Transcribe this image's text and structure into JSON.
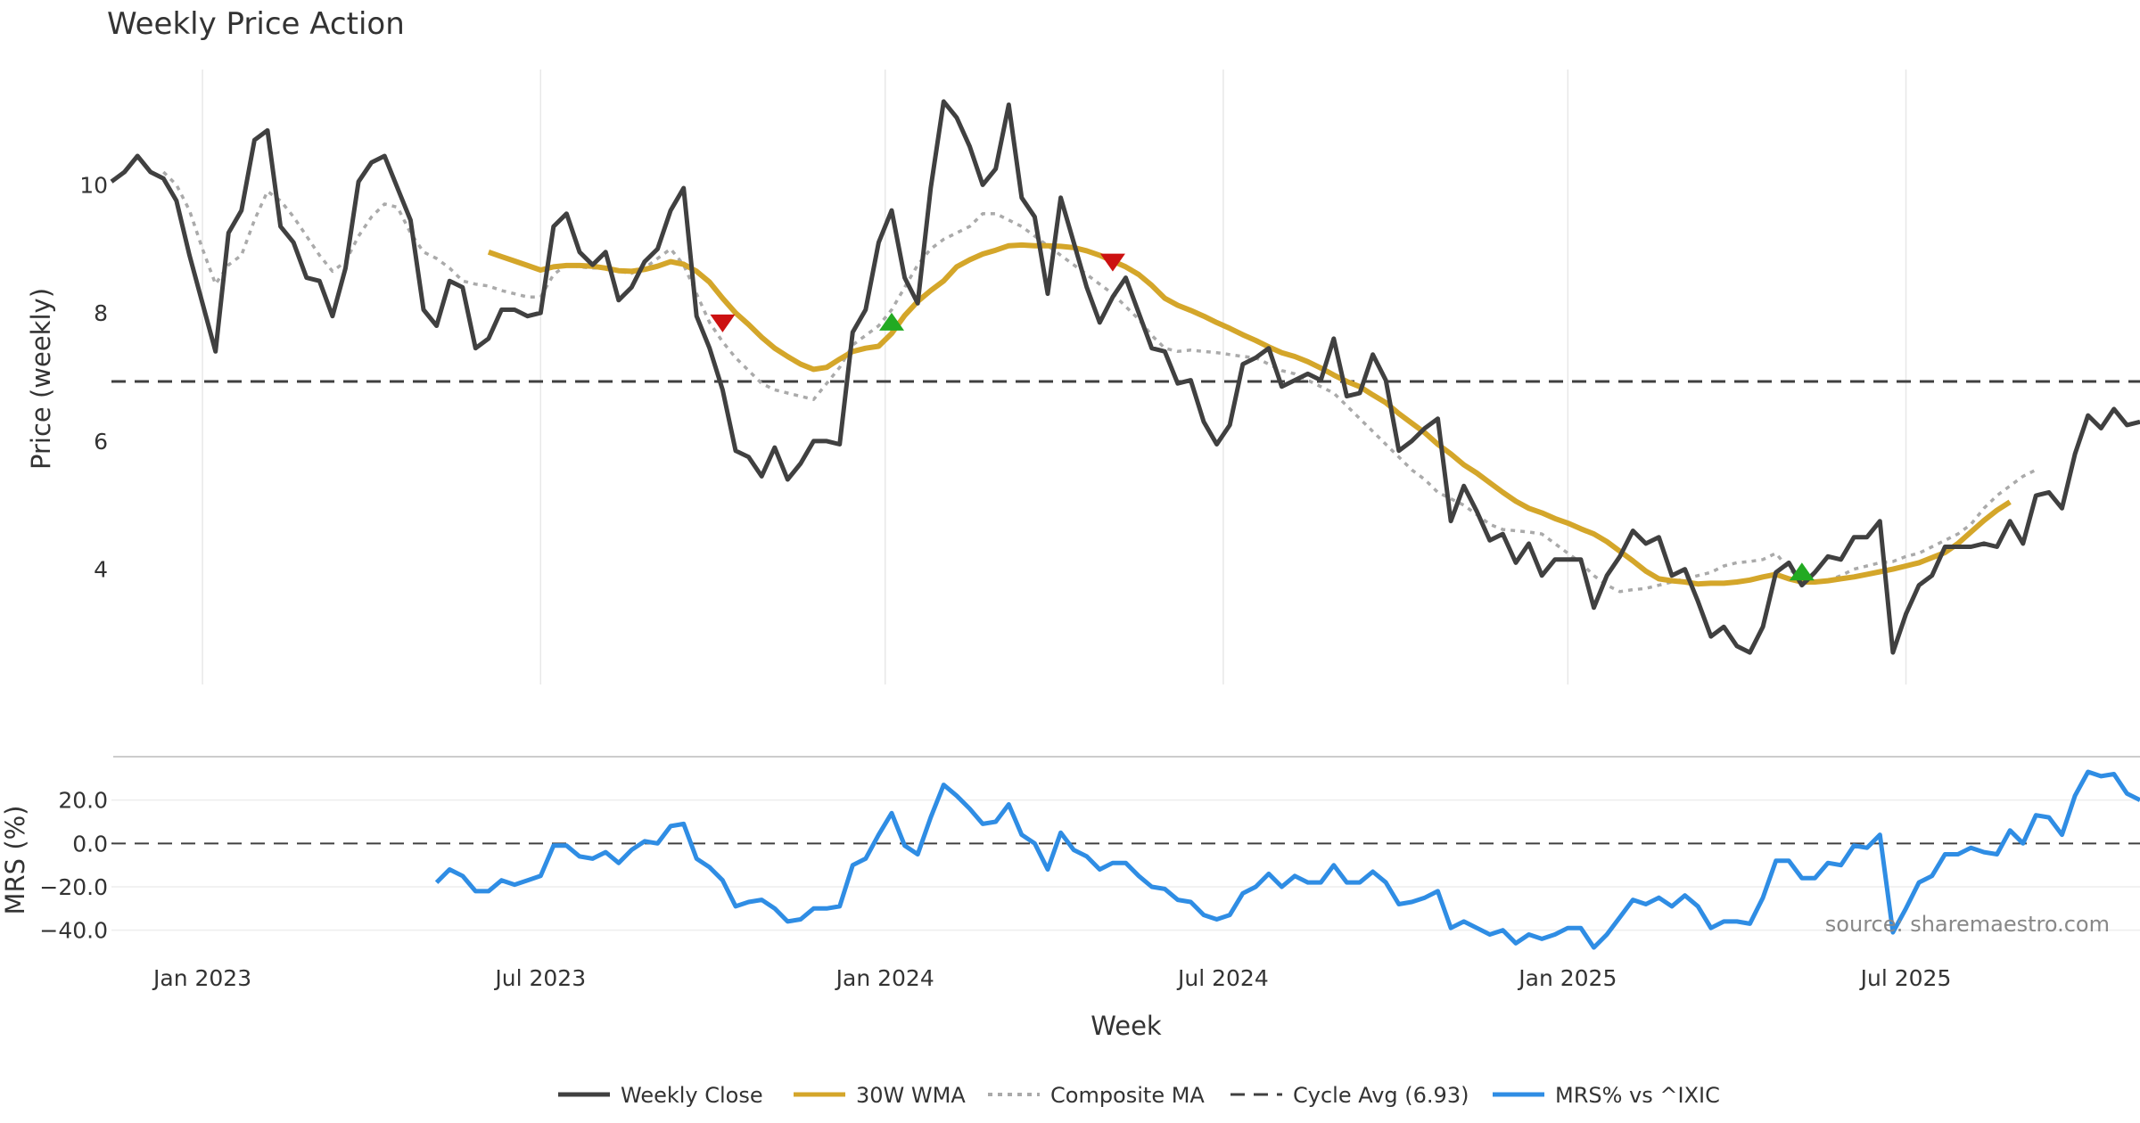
{
  "chart_data": {
    "type": "line",
    "title": "Weekly Price Action",
    "xlabel": "Week",
    "source_text": "source: sharemaestro.com",
    "x_ticks": [
      "Jan 2023",
      "Jul 2023",
      "Jan 2024",
      "Jul 2024",
      "Jan 2025",
      "Jul 2025"
    ],
    "x_tick_weeks": [
      7,
      33,
      59.5,
      85.5,
      112,
      138
    ],
    "x_range": [
      0,
      156
    ],
    "price_panel": {
      "ylabel": "Price (weekly)",
      "ylim": [
        2.2,
        11.8
      ],
      "y_ticks": [
        4,
        6,
        8,
        10
      ],
      "y_tick_labels": [
        "4",
        "6",
        "8",
        "10"
      ],
      "cycle_avg": 6.93,
      "series": [
        {
          "name": "Weekly Close",
          "color": "#404040",
          "start_week": 0,
          "values": [
            10.05,
            10.2,
            10.45,
            10.2,
            10.1,
            9.75,
            8.9,
            8.15,
            7.4,
            9.25,
            9.6,
            10.7,
            10.85,
            9.35,
            9.1,
            8.55,
            8.5,
            7.95,
            8.7,
            10.05,
            10.35,
            10.45,
            9.95,
            9.45,
            8.05,
            7.8,
            8.5,
            8.4,
            7.45,
            7.6,
            8.05,
            8.05,
            7.95,
            8.0,
            9.35,
            9.55,
            8.95,
            8.75,
            8.95,
            8.2,
            8.4,
            8.8,
            9.0,
            9.6,
            9.95,
            7.95,
            7.45,
            6.8,
            5.85,
            5.75,
            5.45,
            5.9,
            5.4,
            5.65,
            6.0,
            6.0,
            5.95,
            7.7,
            8.05,
            9.1,
            9.6,
            8.55,
            8.15,
            9.95,
            11.3,
            11.05,
            10.6,
            10.0,
            10.25,
            11.25,
            9.8,
            9.5,
            8.3,
            9.8,
            9.1,
            8.4,
            7.85,
            8.25,
            8.55,
            8.0,
            7.45,
            7.4,
            6.9,
            6.95,
            6.3,
            5.95,
            6.25,
            7.2,
            7.3,
            7.45,
            6.85,
            6.95,
            7.05,
            6.95,
            7.6,
            6.7,
            6.75,
            7.35,
            6.95,
            5.85,
            6.0,
            6.2,
            6.35,
            4.75,
            5.3,
            4.9,
            4.45,
            4.55,
            4.1,
            4.4,
            3.9,
            4.15,
            4.15,
            4.15,
            3.4,
            3.9,
            4.2,
            4.6,
            4.4,
            4.5,
            3.9,
            4.0,
            3.5,
            2.95,
            3.1,
            2.8,
            2.7,
            3.1,
            3.95,
            4.1,
            3.75,
            3.95,
            4.2,
            4.15,
            4.5,
            4.5,
            4.75,
            2.7,
            3.3,
            3.75,
            3.9,
            4.35,
            4.35,
            4.35,
            4.4,
            4.35,
            4.75,
            4.4,
            5.15,
            5.2,
            4.95,
            5.8,
            6.4,
            6.2,
            6.5,
            6.25,
            6.3
          ]
        },
        {
          "name": "30W WMA",
          "color": "#d4a62a",
          "start_week": 29,
          "values": [
            8.95,
            8.88,
            8.81,
            8.74,
            8.67,
            8.72,
            8.74,
            8.74,
            8.73,
            8.7,
            8.66,
            8.65,
            8.68,
            8.73,
            8.8,
            8.76,
            8.65,
            8.48,
            8.23,
            8.0,
            7.82,
            7.62,
            7.45,
            7.32,
            7.2,
            7.12,
            7.15,
            7.28,
            7.4,
            7.45,
            7.48,
            7.68,
            7.96,
            8.18,
            8.35,
            8.5,
            8.72,
            8.83,
            8.92,
            8.98,
            9.05,
            9.06,
            9.05,
            9.05,
            9.04,
            9.02,
            8.97,
            8.9,
            8.81,
            8.72,
            8.6,
            8.43,
            8.23,
            8.12,
            8.04,
            7.95,
            7.85,
            7.76,
            7.66,
            7.57,
            7.47,
            7.38,
            7.32,
            7.24,
            7.14,
            7.03,
            6.93,
            6.85,
            6.72,
            6.6,
            6.43,
            6.28,
            6.13,
            5.95,
            5.8,
            5.63,
            5.5,
            5.35,
            5.2,
            5.06,
            4.95,
            4.88,
            4.79,
            4.72,
            4.63,
            4.55,
            4.43,
            4.28,
            4.13,
            3.97,
            3.85,
            3.82,
            3.8,
            3.77,
            3.78,
            3.78,
            3.8,
            3.83,
            3.88,
            3.92,
            3.85,
            3.8,
            3.8,
            3.82,
            3.85,
            3.88,
            3.92,
            3.96,
            4.0,
            4.05,
            4.1,
            4.18,
            4.26,
            4.4,
            4.58,
            4.76,
            4.92,
            5.05
          ]
        },
        {
          "name": "Composite MA",
          "color": "#aaaaaa",
          "start_week": 4,
          "values": [
            10.2,
            10.0,
            9.6,
            9.0,
            8.45,
            8.75,
            8.9,
            9.45,
            9.9,
            9.75,
            9.5,
            9.2,
            8.9,
            8.65,
            8.8,
            9.2,
            9.5,
            9.7,
            9.65,
            9.25,
            8.95,
            8.85,
            8.7,
            8.5,
            8.45,
            8.42,
            8.35,
            8.3,
            8.25,
            8.25,
            8.6,
            8.75,
            8.72,
            8.7,
            8.7,
            8.65,
            8.62,
            8.7,
            8.85,
            9.0,
            8.75,
            8.3,
            7.85,
            7.55,
            7.3,
            7.1,
            6.9,
            6.8,
            6.75,
            6.7,
            6.65,
            6.9,
            7.15,
            7.5,
            7.65,
            7.8,
            8.05,
            8.4,
            8.75,
            9.0,
            9.15,
            9.25,
            9.35,
            9.55,
            9.55,
            9.45,
            9.35,
            9.2,
            9.05,
            8.9,
            8.75,
            8.6,
            8.45,
            8.3,
            8.1,
            7.9,
            7.65,
            7.45,
            7.4,
            7.42,
            7.4,
            7.38,
            7.35,
            7.32,
            7.3,
            7.2,
            7.1,
            7.05,
            6.95,
            6.85,
            6.75,
            6.55,
            6.35,
            6.15,
            5.95,
            5.75,
            5.55,
            5.4,
            5.2,
            5.1,
            5.0,
            4.85,
            4.7,
            4.62,
            4.6,
            4.58,
            4.55,
            4.4,
            4.25,
            4.1,
            3.9,
            3.75,
            3.65,
            3.68,
            3.7,
            3.75,
            3.8,
            3.85,
            3.9,
            3.95,
            4.05,
            4.1,
            4.12,
            4.15,
            4.25,
            4.0,
            3.85,
            3.8,
            3.82,
            3.9,
            4.0,
            4.05,
            4.1,
            4.12,
            4.2,
            4.25,
            4.35,
            4.45,
            4.55,
            4.7,
            4.95,
            5.15,
            5.3,
            5.45,
            5.55
          ]
        }
      ],
      "signals": [
        {
          "type": "sell",
          "week": 47,
          "value": 7.85,
          "color": "#cc1111"
        },
        {
          "type": "buy",
          "week": 60,
          "value": 7.85,
          "color": "#22aa22"
        },
        {
          "type": "sell",
          "week": 77,
          "value": 8.8,
          "color": "#cc1111"
        },
        {
          "type": "buy",
          "week": 130,
          "value": 3.95,
          "color": "#22aa22"
        }
      ]
    },
    "mrs_panel": {
      "ylabel": "MRS (%)",
      "ylim": [
        -50,
        40
      ],
      "y_ticks": [
        20,
        0,
        -20,
        -40
      ],
      "y_tick_labels": [
        "20.0",
        "0.0",
        "−20.0",
        "−40.0"
      ],
      "zero_line": 0,
      "series": [
        {
          "name": "MRS% vs ^IXIC",
          "color": "#2f8de4",
          "start_week": 25,
          "values": [
            -18,
            -12,
            -15,
            -22,
            -22,
            -17,
            -19,
            -17,
            -15,
            -1,
            -1,
            -6,
            -7,
            -4,
            -9,
            -3,
            1,
            0,
            8,
            9,
            -7,
            -11,
            -17,
            -29,
            -27,
            -26,
            -30,
            -36,
            -35,
            -30,
            -30,
            -29,
            -10,
            -7,
            4,
            14,
            -1,
            -5,
            12,
            27,
            22,
            16,
            9,
            10,
            18,
            4,
            0,
            -12,
            5,
            -3,
            -6,
            -12,
            -9,
            -9,
            -15,
            -20,
            -21,
            -26,
            -27,
            -33,
            -35,
            -33,
            -23,
            -20,
            -14,
            -20,
            -15,
            -18,
            -18,
            -10,
            -18,
            -18,
            -13,
            -18,
            -28,
            -27,
            -25,
            -22,
            -39,
            -36,
            -39,
            -42,
            -40,
            -46,
            -42,
            -44,
            -42,
            -39,
            -39,
            -48,
            -42,
            -34,
            -26,
            -28,
            -25,
            -29,
            -24,
            -29,
            -39,
            -36,
            -36,
            -37,
            -25,
            -8,
            -8,
            -16,
            -16,
            -9,
            -10,
            -1,
            -2,
            4,
            -41,
            -30,
            -18,
            -15,
            -5,
            -5,
            -2,
            -4,
            -5,
            6,
            0,
            13,
            12,
            4,
            22,
            33,
            31,
            32,
            23,
            20
          ]
        }
      ]
    },
    "legend": [
      {
        "label": "Weekly Close",
        "style": "solid",
        "color": "#404040"
      },
      {
        "label": "30W WMA",
        "style": "solid",
        "color": "#d4a62a"
      },
      {
        "label": "Composite MA",
        "style": "dotted",
        "color": "#aaaaaa"
      },
      {
        "label": "Cycle Avg (6.93)",
        "style": "dashed",
        "color": "#404040"
      },
      {
        "label": "MRS% vs ^IXIC",
        "style": "solid",
        "color": "#2f8de4"
      }
    ]
  }
}
